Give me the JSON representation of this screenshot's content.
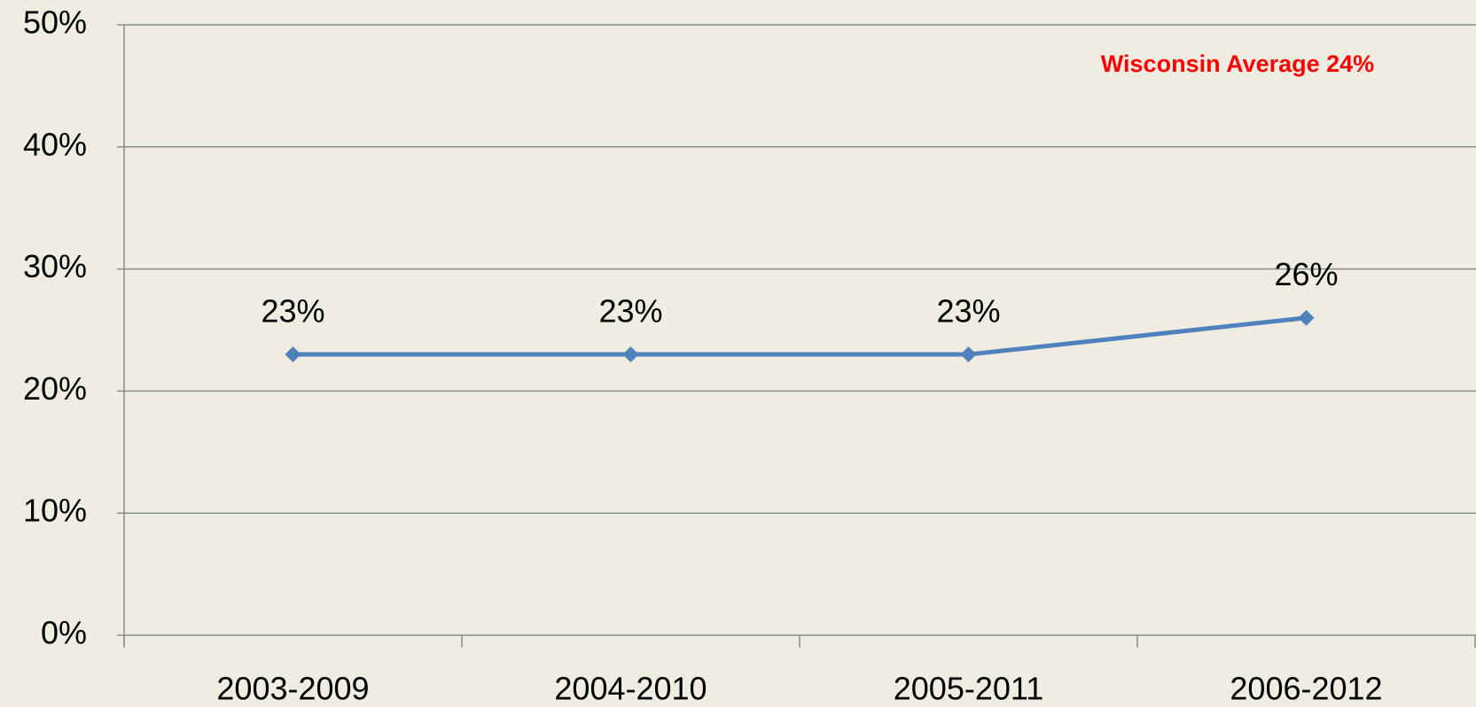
{
  "chart_data": {
    "type": "line",
    "annotation": "Wisconsin Average 24%",
    "categories": [
      "2003-2009",
      "2004-2010",
      "2005-2011",
      "2006-2012"
    ],
    "series": [
      {
        "color": "#4f81bd",
        "values": [
          23,
          23,
          23,
          26
        ],
        "value_labels": [
          "23%",
          "23%",
          "23%",
          "26%"
        ]
      }
    ],
    "ylim": [
      0,
      50
    ],
    "yticks": [
      {
        "value": 0,
        "label": "0%"
      },
      {
        "value": 10,
        "label": "10%"
      },
      {
        "value": 20,
        "label": "20%"
      },
      {
        "value": 30,
        "label": "30%"
      },
      {
        "value": 40,
        "label": "40%"
      },
      {
        "value": 50,
        "label": "50%"
      }
    ],
    "grid": true
  }
}
